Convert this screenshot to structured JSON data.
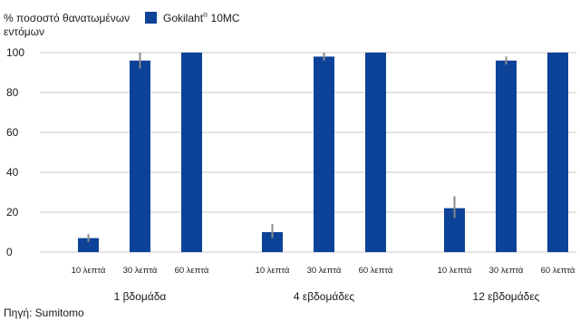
{
  "chart_data": {
    "type": "bar",
    "ylabel_lines": [
      "% ποσοστό θανατωμένων",
      "εντόμων"
    ],
    "legend": {
      "label": "Gokilaht",
      "superscript": "®",
      "suffix": " 10MC",
      "color": "#0c4297"
    },
    "y_ticks": [
      0,
      20,
      40,
      60,
      80,
      100
    ],
    "ylim": [
      0,
      100
    ],
    "grid": true,
    "colors": {
      "bar": "#0c4297",
      "error": "#8a8a8a",
      "grid": "#c8c8c8"
    },
    "groups": [
      {
        "label": "1 βδομάδα",
        "bars": [
          {
            "label": "10 λεπτά",
            "value": 7,
            "err_low": 5,
            "err_high": 9
          },
          {
            "label": "30 λεπτά",
            "value": 96,
            "err_low": 92,
            "err_high": 100
          },
          {
            "label": "60 λεπτά",
            "value": 100,
            "err_low": 100,
            "err_high": 100
          }
        ]
      },
      {
        "label": "4 εβδομάδες",
        "bars": [
          {
            "label": "10 λεπτά",
            "value": 10,
            "err_low": 7,
            "err_high": 14
          },
          {
            "label": "30 λεπτά",
            "value": 98,
            "err_low": 96,
            "err_high": 100
          },
          {
            "label": "60 λεπτά",
            "value": 100,
            "err_low": 100,
            "err_high": 100
          }
        ]
      },
      {
        "label": "12 εβδομάδες",
        "bars": [
          {
            "label": "10 λεπτά",
            "value": 22,
            "err_low": 17,
            "err_high": 28
          },
          {
            "label": "30 λεπτά",
            "value": 96,
            "err_low": 94,
            "err_high": 98
          },
          {
            "label": "60 λεπτά",
            "value": 100,
            "err_low": 100,
            "err_high": 100
          }
        ]
      }
    ]
  },
  "source": "Πηγή: Sumitomo"
}
